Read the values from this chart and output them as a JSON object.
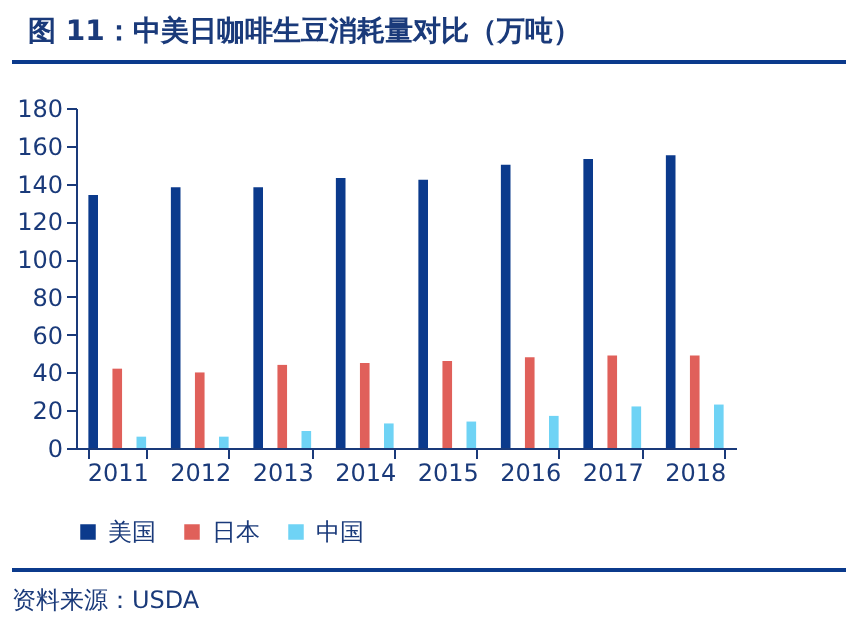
{
  "chart_data": {
    "type": "bar",
    "title": "图 11：中美日咖啡生豆消耗量对比（万吨）",
    "categories": [
      "2011",
      "2012",
      "2013",
      "2014",
      "2015",
      "2016",
      "2017",
      "2018"
    ],
    "series": [
      {
        "name": "美国",
        "color": "#0b3a8c",
        "values": [
          134,
          138,
          138,
          143,
          142,
          150,
          153,
          155
        ]
      },
      {
        "name": "日本",
        "color": "#e0605a",
        "values": [
          42,
          40,
          44,
          45,
          46,
          48,
          49,
          49
        ]
      },
      {
        "name": "中国",
        "color": "#6fd3f5",
        "values": [
          6,
          6,
          9,
          13,
          14,
          17,
          22,
          23
        ]
      }
    ],
    "ylim": [
      0,
      180
    ],
    "yticks": [
      0,
      20,
      40,
      60,
      80,
      100,
      120,
      140,
      160,
      180
    ],
    "grid": false,
    "legend": "bottom",
    "annotations": [
      "资料来源：USDA"
    ]
  }
}
